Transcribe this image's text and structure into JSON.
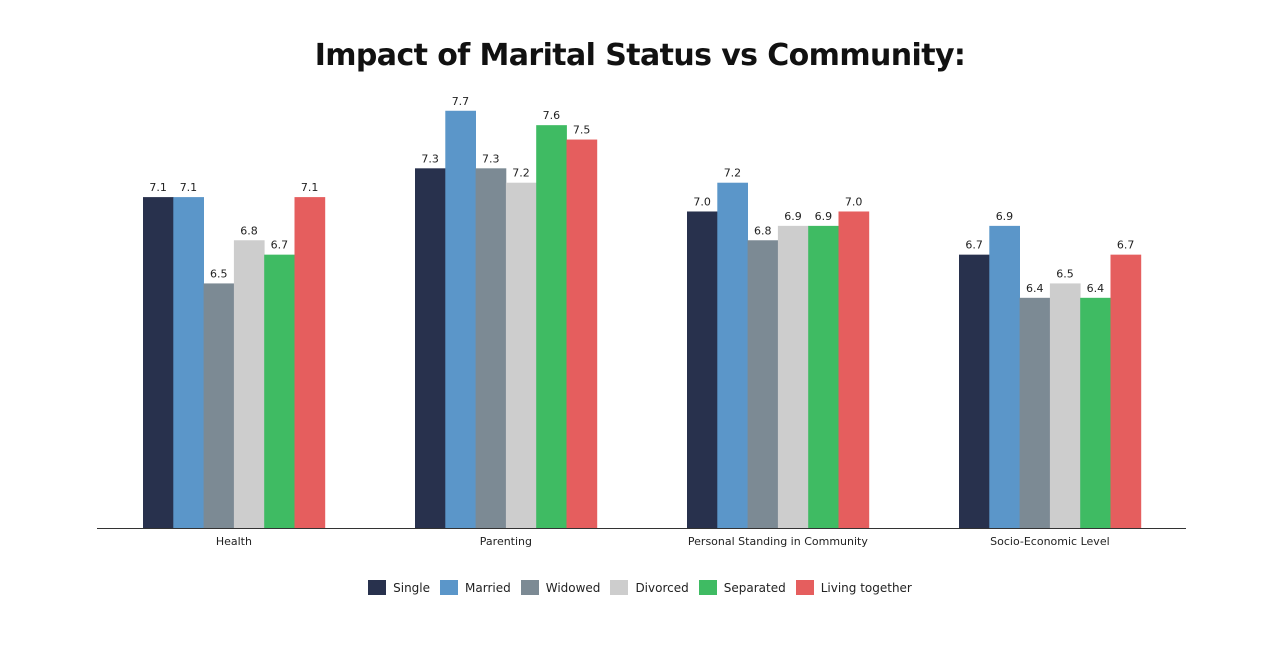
{
  "chart_data": {
    "type": "bar",
    "title": "Impact of Marital Status vs Community:",
    "categories": [
      "Health",
      "Parenting",
      "Personal Standing in Community",
      "Socio-Economic Level"
    ],
    "series": [
      {
        "name": "Single",
        "color": "#28314d",
        "values": [
          7.1,
          7.3,
          7.0,
          6.7
        ]
      },
      {
        "name": "Married",
        "color": "#5b96c9",
        "values": [
          7.1,
          7.7,
          7.2,
          6.9
        ]
      },
      {
        "name": "Widowed",
        "color": "#7c8a94",
        "values": [
          6.5,
          7.3,
          6.8,
          6.4
        ]
      },
      {
        "name": "Divorced",
        "color": "#cdcdcd",
        "values": [
          6.8,
          7.2,
          6.9,
          6.5
        ]
      },
      {
        "name": "Separated",
        "color": "#3fbb63",
        "values": [
          6.7,
          7.6,
          6.9,
          6.4
        ]
      },
      {
        "name": "Living together",
        "color": "#e55e5e",
        "values": [
          7.1,
          7.5,
          7.0,
          6.7
        ]
      }
    ],
    "ylim": [
      4.8,
      7.9
    ],
    "grid": false,
    "legend_position": "bottom"
  }
}
